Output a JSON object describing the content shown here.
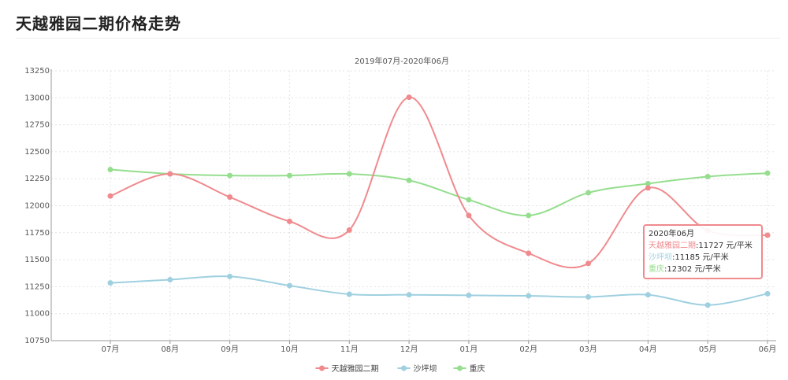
{
  "page": {
    "title": "天越雅园二期价格走势"
  },
  "chart_data": {
    "type": "line",
    "subtitle": "2019年07月-2020年06月",
    "categories": [
      "07月",
      "08月",
      "09月",
      "10月",
      "11月",
      "12月",
      "01月",
      "02月",
      "03月",
      "04月",
      "05月",
      "06月"
    ],
    "ylim": [
      10750,
      13250
    ],
    "yticks": [
      10750,
      11000,
      11250,
      11500,
      11750,
      12000,
      12250,
      12500,
      12750,
      13000,
      13250
    ],
    "grid": true,
    "smooth": true,
    "legend_position": "bottom-center",
    "series": [
      {
        "name": "天越雅园二期",
        "color": "#f08a8e",
        "values": [
          12090,
          12295,
          12080,
          11855,
          11775,
          13005,
          11910,
          11560,
          11465,
          12165,
          11770,
          11727
        ]
      },
      {
        "name": "沙坪坝",
        "color": "#9fd0e0",
        "values": [
          11285,
          11315,
          11345,
          11260,
          11180,
          11175,
          11170,
          11165,
          11155,
          11175,
          11080,
          11185
        ]
      },
      {
        "name": "重庆",
        "color": "#95de8e",
        "values": [
          12335,
          12295,
          12280,
          12280,
          12295,
          12235,
          12055,
          11910,
          12120,
          12205,
          12270,
          12302
        ]
      }
    ],
    "tooltip": {
      "title": "2020年06月",
      "rows": [
        {
          "name": "天越雅园二期",
          "value_text": ":11727 元/平米"
        },
        {
          "name": "沙坪坝",
          "value_text": ":11185 元/平米"
        },
        {
          "name": "重庆",
          "value_text": ":12302 元/平米"
        }
      ]
    }
  }
}
